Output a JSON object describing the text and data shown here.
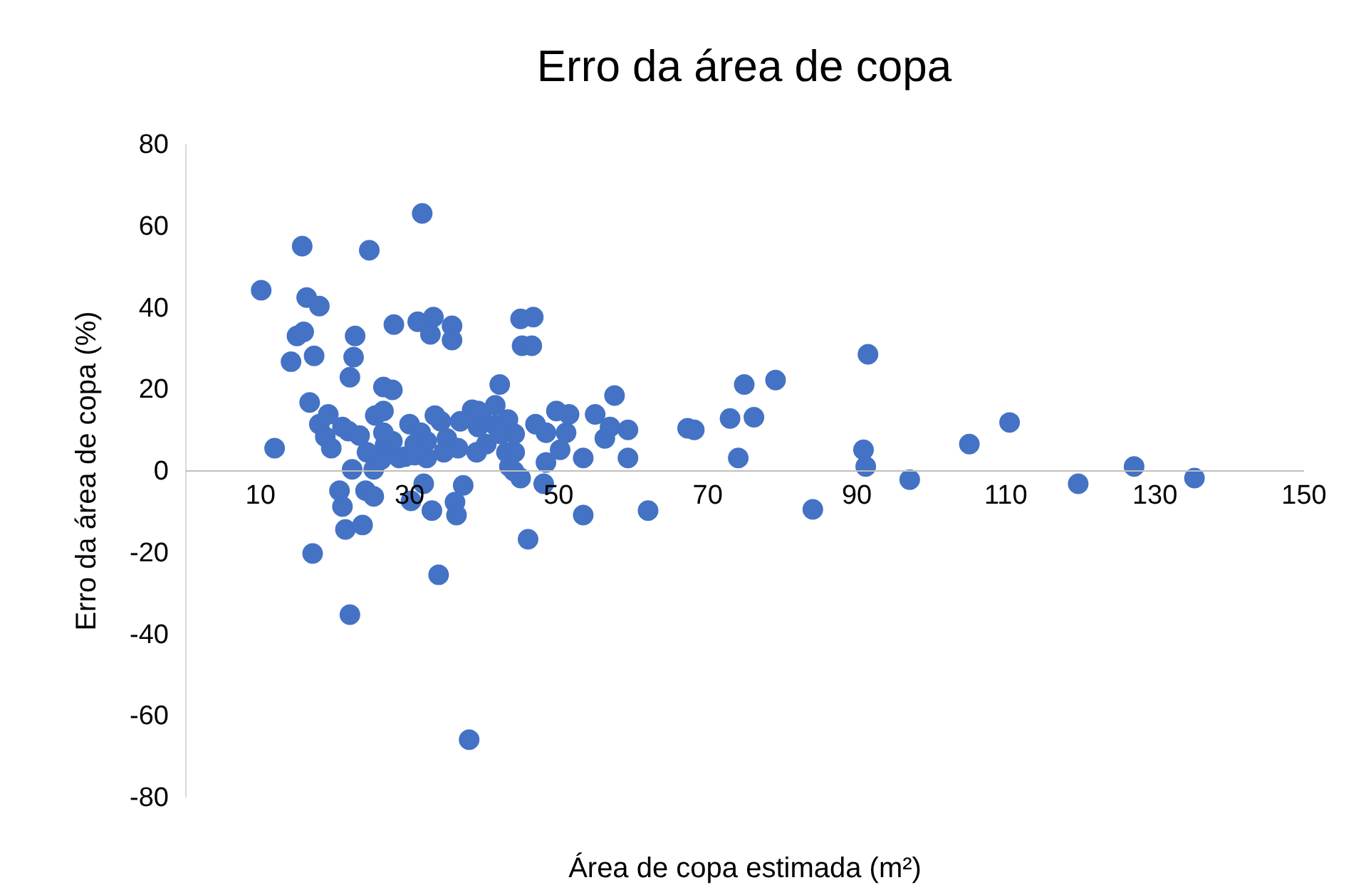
{
  "chart_data": {
    "type": "scatter",
    "title": "Erro da área de copa",
    "xlabel": "Área de copa estimada (m²)",
    "ylabel": "Erro da área de copa (%)",
    "xlim": [
      0,
      150
    ],
    "xticks": [
      10,
      30,
      50,
      70,
      90,
      110,
      130,
      150
    ],
    "ylim": [
      -80,
      80
    ],
    "yticks": [
      -80,
      -60,
      -40,
      -20,
      0,
      20,
      40,
      60,
      80
    ],
    "marker": "circle",
    "series": [
      {
        "color": "#4472c4",
        "x": [
          10.2,
          12.0,
          14.2,
          15.0,
          15.7,
          15.9,
          16.3,
          16.7,
          17.1,
          17.3,
          18.0,
          18.0,
          18.8,
          19.2,
          20.7,
          21.1,
          21.5,
          22.1,
          22.1,
          22.6,
          22.8,
          22.4,
          23.8,
          24.7,
          24.2,
          25.3,
          25.5,
          26.6,
          26.6,
          26.8,
          27.8,
          28.0,
          28.7,
          29.5,
          30.1,
          30.3,
          31.2,
          31.8,
          32.0,
          32.4,
          32.9,
          33.3,
          33.1,
          34.0,
          35.8,
          35.8,
          34.3,
          35.1,
          36.2,
          36.4,
          37.3,
          38.1,
          38.5,
          39.3,
          40.4,
          41.6,
          42.2,
          41.6,
          43.3,
          43.5,
          44.1,
          45.0,
          46.7,
          45.2,
          46.5,
          46.0,
          45.0,
          47.0,
          48.1,
          48.4,
          49.8,
          51.1,
          51.5,
          50.3,
          53.4,
          53.4,
          55.0,
          56.3,
          57.0,
          57.6,
          59.4,
          59.4,
          62.1,
          67.4,
          68.3,
          73.1,
          74.2,
          75.0,
          76.3,
          79.2,
          84.2,
          91.6,
          91.0,
          91.3,
          97.2,
          105.2,
          110.6,
          119.8,
          127.3,
          135.4,
          30.8,
          31.6,
          33.5,
          34.7,
          36.9,
          36.6,
          39.1,
          40.0,
          42.3,
          43.1,
          44.2,
          32.4,
          19.6,
          21.9,
          24.4,
          25.3,
          26.3,
          27.8,
          21.1,
          23.4,
          30.8,
          26.6,
          48.4,
          44.2,
          39.3
        ],
        "values": [
          44.1,
          5.4,
          26.6,
          32.9,
          54.9,
          33.9,
          42.3,
          16.6,
          -20.4,
          28.0,
          40.2,
          11.3,
          8.2,
          13.7,
          -5,
          -8.9,
          -14.5,
          -35.4,
          22.8,
          27.7,
          32.9,
          0.2,
          -13.4,
          53.9,
          -5,
          -6.4,
          13.4,
          20.4,
          14.5,
          6.1,
          19.7,
          35.7,
          3,
          3.3,
          11.3,
          -7.5,
          36.4,
          62.9,
          -3.3,
          3,
          33.3,
          37.5,
          -9.9,
          -25.6,
          35.4,
          31.9,
          12,
          7.8,
          -7.8,
          -11,
          -3.7,
          -66,
          14.8,
          10.6,
          6.4,
          11,
          21,
          15.9,
          12.4,
          0.9,
          -0.2,
          37.1,
          37.5,
          30.5,
          30.5,
          -16.9,
          -1.9,
          11.3,
          -3.3,
          1.9,
          14.5,
          9.2,
          13.7,
          5,
          3,
          -11,
          13.7,
          7.8,
          10.6,
          18.3,
          9.9,
          3,
          -9.9,
          10.3,
          9.9,
          12.7,
          3,
          21,
          13,
          22.1,
          -9.6,
          28.4,
          5,
          0.9,
          -2.3,
          6.4,
          11.7,
          -3.3,
          0.9,
          -1.9,
          6.4,
          9.2,
          13.4,
          4.4,
          12,
          5.4,
          4.4,
          12,
          8.9,
          4.4,
          8.9,
          7.1,
          5.4,
          9.6,
          4.4,
          0.2,
          2.6,
          7.1,
          10.6,
          8.5,
          3.7,
          9.2,
          9.2,
          4.4,
          14.5
        ]
      }
    ]
  }
}
